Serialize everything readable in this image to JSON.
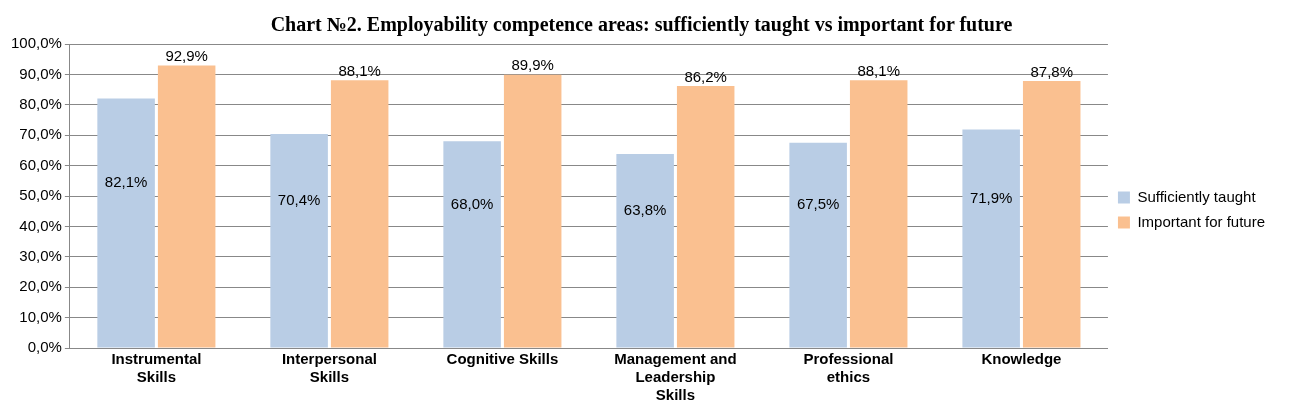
{
  "chart_data": {
    "type": "bar",
    "title": "Chart №2. Employability competence areas: sufficiently taught vs important for future",
    "categories": [
      "Instrumental Skills",
      "Interpersonal Skills",
      "Cognitive Skills",
      "Management and Leadership Skills",
      "Professional ethics",
      "Knowledge"
    ],
    "series": [
      {
        "name": "Sufficiently taught",
        "color": "#b9cde5",
        "values": [
          82.1,
          70.4,
          68.0,
          63.8,
          67.5,
          71.9
        ],
        "value_labels": [
          "82,1%",
          "70,4%",
          "68,0%",
          "63,8%",
          "67,5%",
          "71,9%"
        ]
      },
      {
        "name": "Important for future",
        "color": "#fac090",
        "values": [
          92.9,
          88.1,
          89.9,
          86.2,
          88.1,
          87.8
        ],
        "value_labels": [
          "92,9%",
          "88,1%",
          "89,9%",
          "86,2%",
          "88,1%",
          "87,8%"
        ]
      }
    ],
    "ylim": [
      0,
      100
    ],
    "yticks": [
      {
        "value": 0,
        "label": "0,0%"
      },
      {
        "value": 10,
        "label": "10,0%"
      },
      {
        "value": 20,
        "label": "20,0%"
      },
      {
        "value": 30,
        "label": "30,0%"
      },
      {
        "value": 40,
        "label": "40,0%"
      },
      {
        "value": 50,
        "label": "50,0%"
      },
      {
        "value": 60,
        "label": "60,0%"
      },
      {
        "value": 70,
        "label": "70,0%"
      },
      {
        "value": 80,
        "label": "80,0%"
      },
      {
        "value": 90,
        "label": "90,0%"
      },
      {
        "value": 100,
        "label": "100,0%"
      }
    ],
    "grid": "y",
    "legend": "right"
  }
}
